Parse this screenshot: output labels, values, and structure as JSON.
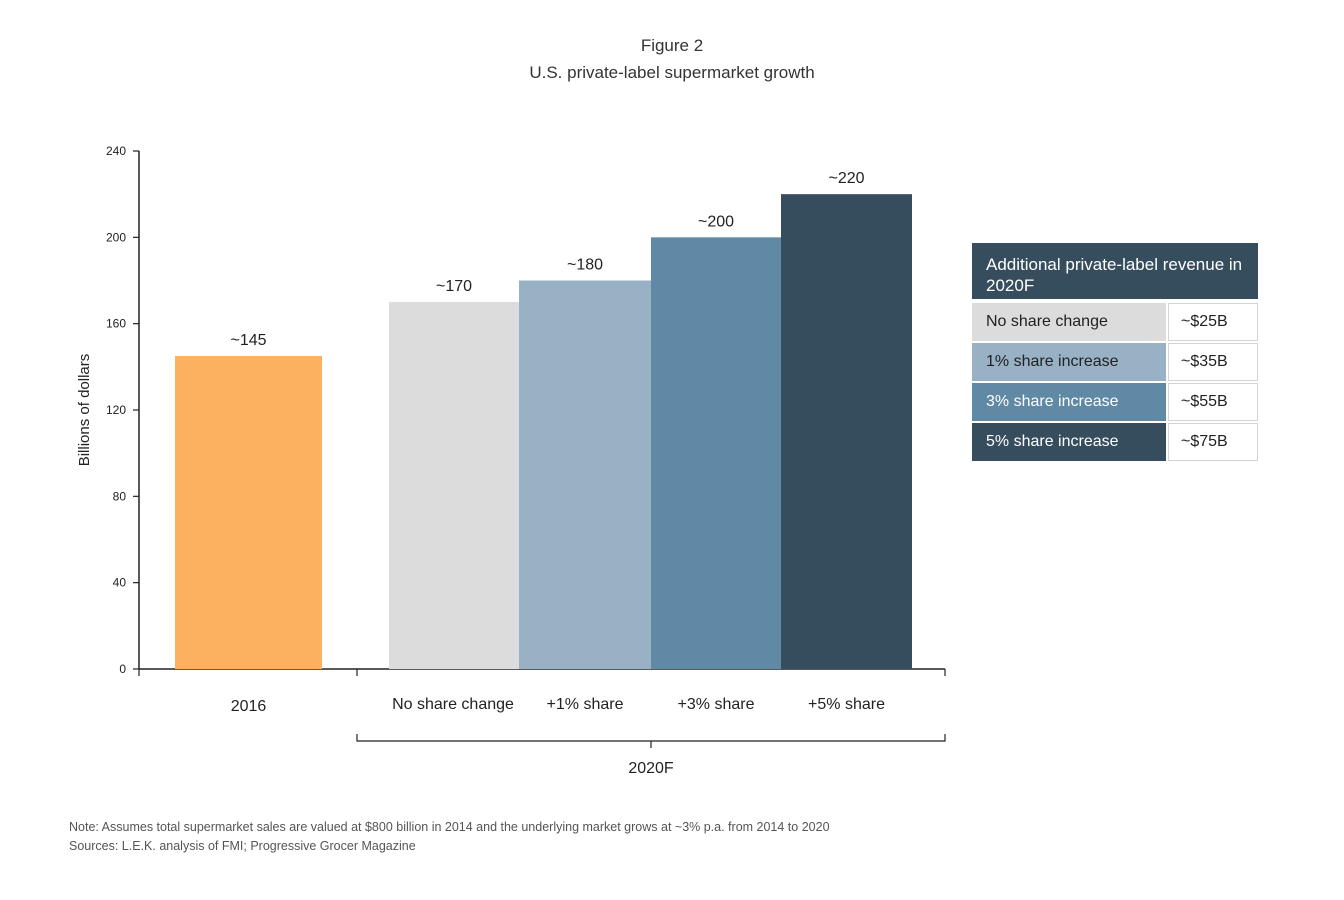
{
  "figure_label": "Figure 2",
  "title": "U.S. private-label supermarket growth",
  "chart_data": {
    "type": "bar",
    "title": "U.S. private-label supermarket growth",
    "ylabel": "Billions of dollars",
    "ylim": [
      0,
      240
    ],
    "yticks": [
      0,
      40,
      80,
      120,
      160,
      200,
      240
    ],
    "categories": [
      "2016",
      "No share change",
      "+1% share",
      "+3% share",
      "+5% share"
    ],
    "values": [
      145,
      170,
      180,
      200,
      220
    ],
    "data_labels": [
      "~145",
      "~170",
      "~180",
      "~200",
      "~220"
    ],
    "colors": [
      "#fbb15f",
      "#dcdcdc",
      "#98b1c5",
      "#5f89a5",
      "#364d5e"
    ],
    "group_label": "2020F",
    "grid": false
  },
  "table": {
    "header": "Additional private-label revenue in 2020F",
    "rows": [
      {
        "label": "No share change",
        "value": "~$25B",
        "color": "#dcdcdc",
        "text_color": "#222222"
      },
      {
        "label": "1% share increase",
        "value": "~$35B",
        "color": "#98b1c5",
        "text_color": "#222222"
      },
      {
        "label": "3% share increase",
        "value": "~$55B",
        "color": "#5f89a5",
        "text_color": "#ffffff"
      },
      {
        "label": "5% share increase",
        "value": "~$75B",
        "color": "#364d5e",
        "text_color": "#ffffff"
      }
    ]
  },
  "note": "Note: Assumes total supermarket sales are valued at $800 billion in 2014 and the underlying market grows at ~3% p.a. from 2014 to 2020",
  "sources": "Sources: L.E.K. analysis of FMI; Progressive Grocer Magazine"
}
